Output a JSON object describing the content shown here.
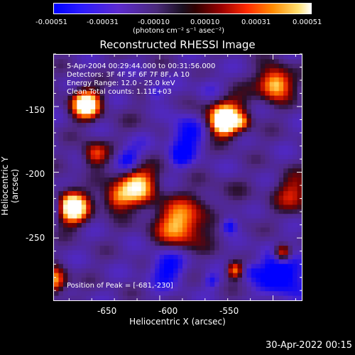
{
  "colorbar": {
    "ticks": [
      "-0.00051",
      "-0.00031",
      "-0.00010",
      "0.00010",
      "0.00031",
      "0.00051"
    ],
    "units": "(photons cm⁻² s⁻¹ asec⁻²)"
  },
  "annotations": {
    "time_range": "5-Apr-2004 00:29:44.000 to 00:31:56.000",
    "detectors": "Detectors: 3F 4F 5F 6F 7F 8F, A 10",
    "energy": "Energy Range: 12.0 - 25.0 keV",
    "clean": "Clean     Total counts: 1.11E+03",
    "peak": "Position of Peak = [-681,-230]"
  },
  "footer_timestamp": "30-Apr-2022 00:15",
  "chart_data": {
    "type": "heatmap",
    "title": "Reconstructed RHESSI Image",
    "xlabel": "Heliocentric X (arcsec)",
    "ylabel": "Heliocentric Y (arcsec)",
    "xlim": [
      -697,
      -587
    ],
    "ylim": [
      -298,
      -110
    ],
    "xticks": [
      "-650",
      "-600",
      "-550"
    ],
    "yticks": [
      "-150",
      "-200",
      "-250"
    ],
    "xtick_values": [
      -650,
      -600,
      -550
    ],
    "ytick_values": [
      -150,
      -200,
      -250
    ],
    "colorbar_range": [
      -0.00051,
      0.00051
    ],
    "peak_position": [
      -681,
      -230
    ],
    "grid": false
  }
}
